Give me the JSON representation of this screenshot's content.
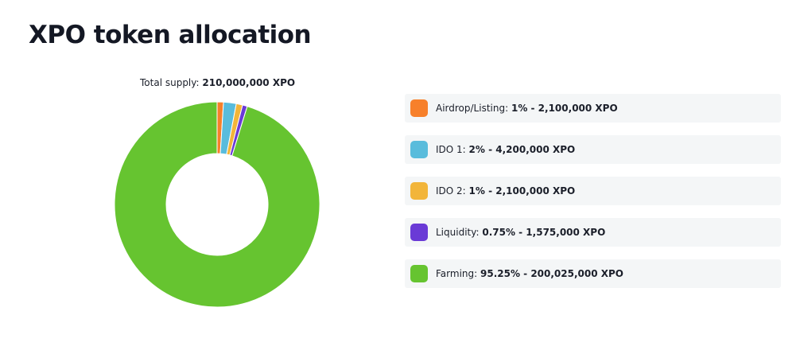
{
  "title": "XPO token allocation",
  "supply": {
    "label": "Total supply:",
    "value": "210,000,000 XPO"
  },
  "colors": {
    "airdrop": "#f7802b",
    "ido1": "#59bcdc",
    "ido2": "#f2b53a",
    "liquidity": "#6a3ad6",
    "farming": "#66c430",
    "background": "#ffffff",
    "legend_bg": "#f4f6f7"
  },
  "chart_data": {
    "type": "pie",
    "subtype": "donut",
    "categories": [
      "Airdrop/Listing",
      "IDO 1",
      "IDO 2",
      "Liquidity",
      "Farming"
    ],
    "values": [
      1,
      2,
      1,
      0.75,
      95.25
    ],
    "unit": "%",
    "amounts": [
      "2,100,000 XPO",
      "4,200,000 XPO",
      "2,100,000 XPO",
      "1,575,000 XPO",
      "200,025,000 XPO"
    ],
    "colors": [
      "#f7802b",
      "#59bcdc",
      "#f2b53a",
      "#6a3ad6",
      "#66c430"
    ],
    "legend_position": "right",
    "legend": [
      {
        "label": "Airdrop/Listing:",
        "value": "1% - 2,100,000 XPO"
      },
      {
        "label": "IDO 1:",
        "value": "2% - 4,200,000 XPO"
      },
      {
        "label": "IDO 2:",
        "value": "1% - 2,100,000 XPO"
      },
      {
        "label": "Liquidity:",
        "value": "0.75% - 1,575,000 XPO"
      },
      {
        "label": "Farming:",
        "value": "95.25% - 200,025,000 XPO"
      }
    ]
  }
}
